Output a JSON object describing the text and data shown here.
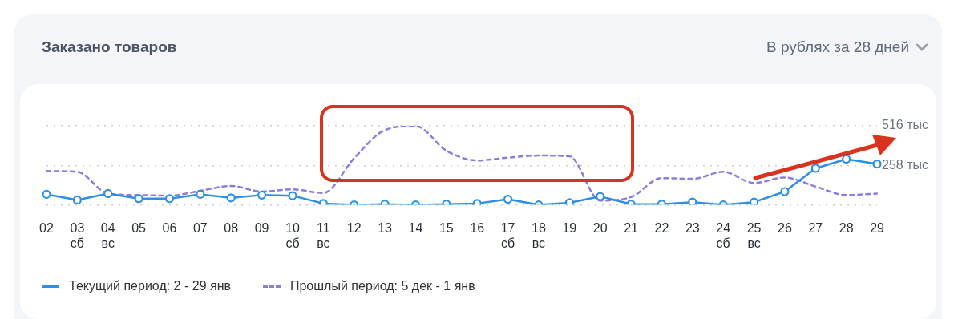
{
  "chart_data": {
    "type": "line",
    "title": "Заказано товаров",
    "subtitle": "В рублях за 28 дней",
    "categories": [
      "02",
      "03\nсб",
      "04\nвс",
      "05",
      "06",
      "07",
      "08",
      "09",
      "10\nсб",
      "11\nвс",
      "12",
      "13",
      "14",
      "15",
      "16",
      "17\nсб",
      "18\nвс",
      "19",
      "20",
      "21",
      "22",
      "23",
      "24\nсб",
      "25\nвс",
      "26",
      "27",
      "28",
      "29"
    ],
    "series": [
      {
        "name": "Текущий период: 2 - 29 янв",
        "color": "#2f8fe3",
        "marker": "circle",
        "line_style": "solid",
        "values": [
          69,
          32,
          74,
          41,
          41,
          69,
          46,
          64,
          60,
          9,
          0,
          5,
          0,
          5,
          9,
          37,
          0,
          14,
          55,
          5,
          5,
          18,
          0,
          18,
          87,
          239,
          299,
          267
        ]
      },
      {
        "name": "Прошлый период: 5 дек - 1 янв",
        "color": "#8f7be0",
        "marker": "none",
        "line_style": "dashed",
        "values": [
          221,
          216,
          74,
          64,
          60,
          92,
          124,
          87,
          101,
          78,
          304,
          488,
          515,
          354,
          290,
          308,
          322,
          317,
          28,
          51,
          175,
          170,
          216,
          143,
          179,
          120,
          64,
          74
        ]
      }
    ],
    "ylim": [
      0,
      516
    ],
    "yticks": [
      {
        "value": 0,
        "label": null
      },
      {
        "value": 258,
        "label": "258 тыс"
      },
      {
        "value": 516,
        "label": "516 тыс"
      }
    ],
    "grid": "y",
    "legend": "bottom"
  }
}
